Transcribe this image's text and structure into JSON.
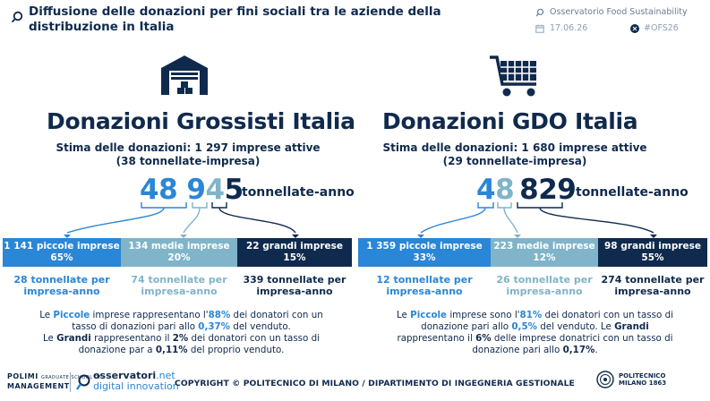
{
  "header": {
    "title": "Diffusione delle donazioni per fini sociali tra le aziende della distribuzione in Italia",
    "observatory": "Osservatorio Food Sustainability",
    "date": "17.06.26",
    "hashtag": "#OFS26"
  },
  "left": {
    "icon": "warehouse-icon",
    "heading": "Donazioni Grossisti Italia",
    "subtitle_line1": "Stima delle donazioni: 1 297 imprese attive",
    "subtitle_line2": "(38 tonnellate-impresa)",
    "total_part_small": "48 9",
    "total_part_med": "4",
    "total_part_large": "5",
    "unit": "tonnellate-anno",
    "bands": [
      {
        "label": "1 141 piccole imprese",
        "pct": "65%"
      },
      {
        "label": "134 medie imprese",
        "pct": "20%"
      },
      {
        "label": "22 grandi imprese",
        "pct": "15%"
      }
    ],
    "per": [
      {
        "line1": "28 tonnellate per",
        "line2": "impresa-anno"
      },
      {
        "line1": "74 tonnellate per",
        "line2": "impresa-anno"
      },
      {
        "line1": "339 tonnellate per",
        "line2": "impresa-anno"
      }
    ],
    "para": {
      "p1": "Le ",
      "p2": "Piccole",
      "p3": " imprese rappresentano l'",
      "p4": "88%",
      "p5": " dei donatori con un",
      "p6": "tasso di donazioni pari allo ",
      "p7": "0,37%",
      "p8": " del venduto.",
      "p9": "Le ",
      "p10": "Grandi",
      "p11": " rappresentano il ",
      "p12": "2%",
      "p13": " dei donatori con un tasso di",
      "p14": "donazione par a ",
      "p15": "0,11%",
      "p16": " del proprio venduto."
    }
  },
  "right": {
    "icon": "shopping-cart-icon",
    "heading": "Donazioni GDO Italia",
    "subtitle_line1": "Stima delle donazioni: 1 680 imprese attive",
    "subtitle_line2": "(29 tonnellate-impresa)",
    "total_part_small": "4",
    "total_part_med": "8",
    "total_part_large": "829",
    "unit": "tonnellate-anno",
    "bands": [
      {
        "label": "1 359 piccole imprese",
        "pct": "33%"
      },
      {
        "label": "223 medie imprese",
        "pct": "12%"
      },
      {
        "label": "98 grandi imprese",
        "pct": "55%"
      }
    ],
    "per": [
      {
        "line1": "12 tonnellate per",
        "line2": "impresa-anno"
      },
      {
        "line1": "26 tonnellate per",
        "line2": "impresa-anno"
      },
      {
        "line1": "274 tonnellate per",
        "line2": "impresa-anno"
      }
    ],
    "para": {
      "p1": "Le ",
      "p2": "Piccole",
      "p3": " imprese sono l'",
      "p4": "81%",
      "p5": " dei donatori con un tasso di",
      "p6": "donazione pari allo ",
      "p7": "0,5%",
      "p8": " del venduto. Le ",
      "p9": "Grandi",
      "p10": "rappresentano il ",
      "p11": "6%",
      "p12": " delle imprese donatrici con un tasso di",
      "p13": "donazione pari allo ",
      "p14": "0,17%",
      "p15": "."
    }
  },
  "footer": {
    "polimi_line1": "POLIMI",
    "polimi_small": "GRADUATE SCHOOL OF",
    "polimi_line2": "MANAGEMENT",
    "osservatori_a": "osservatori",
    "osservatori_dot": ".net",
    "osservatori_b": "digital innovation",
    "copyright": "COPYRIGHT © POLITECNICO DI MILANO / DIPARTIMENTO DI INGEGNERIA GESTIONALE",
    "politecnico_line1": "POLITECNICO",
    "politecnico_line2": "MILANO 1863"
  },
  "colors": {
    "navy": "#0f2a4d",
    "blue": "#2a86d6",
    "teal": "#7fb4c9"
  }
}
